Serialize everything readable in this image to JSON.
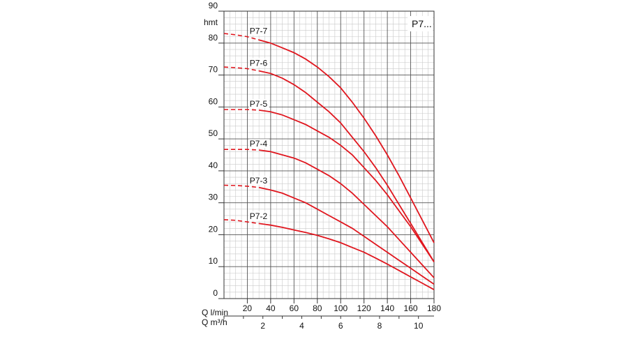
{
  "chart_data": {
    "type": "line",
    "badge": "P7...",
    "ylabel": "hmt",
    "xlabel_lmin": "Q l/min",
    "xlabel_m3h": "Q m³/h",
    "xlim": [
      0,
      180
    ],
    "ylim": [
      0,
      90
    ],
    "yticks": [
      0,
      10,
      20,
      30,
      40,
      50,
      60,
      70,
      80,
      90
    ],
    "xticks_lmin": [
      20,
      40,
      60,
      80,
      100,
      120,
      140,
      160,
      180
    ],
    "xticks_m3h": [
      2,
      4,
      6,
      8,
      10
    ],
    "grid": true,
    "series_color": "#e0161e",
    "series": [
      {
        "name": "P7-7",
        "dashed": {
          "x": [
            0,
            10,
            20,
            30
          ],
          "y": [
            83,
            82.6,
            82,
            81
          ]
        },
        "solid": {
          "x": [
            30,
            40,
            50,
            60,
            70,
            80,
            90,
            100,
            110,
            120,
            130,
            140,
            150,
            160,
            170,
            180
          ],
          "y": [
            81,
            80,
            78.5,
            77,
            75,
            72.5,
            69.5,
            66,
            61.5,
            56.5,
            51,
            45,
            38.5,
            31.5,
            24.5,
            17.5
          ]
        }
      },
      {
        "name": "P7-6",
        "dashed": {
          "x": [
            0,
            10,
            20,
            30
          ],
          "y": [
            72.5,
            72.3,
            72,
            71.3
          ]
        },
        "solid": {
          "x": [
            30,
            40,
            50,
            60,
            70,
            80,
            90,
            100,
            110,
            120,
            130,
            140,
            150,
            160,
            170,
            180
          ],
          "y": [
            71.3,
            70.5,
            69,
            67,
            64.5,
            61.5,
            58.5,
            55,
            50.5,
            46,
            41,
            35.5,
            29.5,
            23.5,
            17.5,
            11.5
          ]
        }
      },
      {
        "name": "P7-5",
        "dashed": {
          "x": [
            0,
            10,
            20,
            30
          ],
          "y": [
            59.2,
            59.2,
            59.2,
            59
          ]
        },
        "solid": {
          "x": [
            30,
            40,
            50,
            60,
            70,
            80,
            90,
            100,
            110,
            120,
            130,
            140,
            150,
            160,
            170,
            180
          ],
          "y": [
            59,
            58.5,
            57.5,
            56,
            54.5,
            52.5,
            50.5,
            48,
            45,
            41,
            37,
            32.5,
            27.5,
            22.5,
            17,
            11.5
          ]
        }
      },
      {
        "name": "P7-4",
        "dashed": {
          "x": [
            0,
            10,
            20,
            30
          ],
          "y": [
            46.7,
            46.7,
            46.7,
            46.5
          ]
        },
        "solid": {
          "x": [
            30,
            40,
            50,
            60,
            70,
            80,
            90,
            100,
            110,
            120,
            130,
            140,
            150,
            160,
            170,
            180
          ],
          "y": [
            46.5,
            46,
            45,
            44,
            42.5,
            40.5,
            38.5,
            36,
            33,
            29.5,
            26,
            22.5,
            18.5,
            14.5,
            10.5,
            6.5
          ]
        }
      },
      {
        "name": "P7-3",
        "dashed": {
          "x": [
            0,
            10,
            20,
            30
          ],
          "y": [
            35.5,
            35.4,
            35.2,
            34.8
          ]
        },
        "solid": {
          "x": [
            30,
            40,
            50,
            60,
            70,
            80,
            90,
            100,
            110,
            120,
            130,
            140,
            150,
            160,
            170,
            180
          ],
          "y": [
            34.8,
            34,
            33,
            31.5,
            30,
            28,
            26,
            24,
            22,
            19.5,
            17,
            14.5,
            12,
            9.5,
            7,
            4.5
          ]
        }
      },
      {
        "name": "P7-2",
        "dashed": {
          "x": [
            0,
            10,
            20,
            30
          ],
          "y": [
            24.7,
            24.5,
            24,
            23.5
          ]
        },
        "solid": {
          "x": [
            30,
            40,
            50,
            60,
            70,
            80,
            90,
            100,
            110,
            120,
            130,
            140,
            150,
            160,
            170,
            180
          ],
          "y": [
            23.5,
            23,
            22.3,
            21.5,
            20.7,
            19.8,
            18.7,
            17.5,
            16,
            14.5,
            12.7,
            10.8,
            8.8,
            6.8,
            4.8,
            2.8
          ]
        }
      }
    ]
  }
}
